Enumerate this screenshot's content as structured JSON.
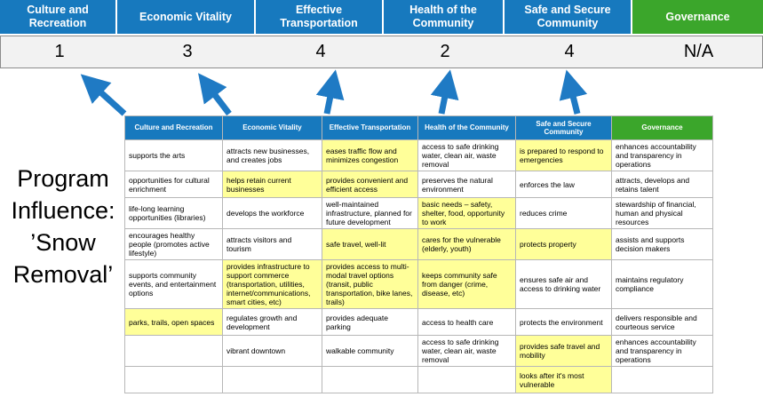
{
  "program_label": {
    "lines": [
      "Program",
      "Influence:",
      "’Snow",
      "Removal’"
    ]
  },
  "top_band": {
    "blue": "#1779BE",
    "green": "#3BA62B",
    "highlight_yellow": "#FFFF99",
    "columns": [
      {
        "label": "Culture and Recreation",
        "score": "1",
        "color": "blue"
      },
      {
        "label": "Economic Vitality",
        "score": "3",
        "color": "blue"
      },
      {
        "label": "Effective Transportation",
        "score": "4",
        "color": "blue"
      },
      {
        "label": "Health of the Community",
        "score": "2",
        "color": "blue"
      },
      {
        "label": "Safe and Secure Community",
        "score": "4",
        "color": "blue"
      },
      {
        "label": "Governance",
        "score": "N/A",
        "color": "green"
      }
    ]
  },
  "matrix": {
    "headers": [
      "Culture and Recreation",
      "Economic Vitality",
      "Effective Transportation",
      "Health of the Community",
      "Safe and Secure Community",
      "Governance"
    ],
    "rows": [
      [
        {
          "text": "supports the arts",
          "hl": false
        },
        {
          "text": "attracts new businesses, and creates jobs",
          "hl": false
        },
        {
          "text": "eases traffic flow and minimizes congestion",
          "hl": true
        },
        {
          "text": "access to safe drinking water, clean air, waste removal",
          "hl": false
        },
        {
          "text": "is prepared to respond to emergencies",
          "hl": true
        },
        {
          "text": "enhances accountability and transparency in operations",
          "hl": false
        }
      ],
      [
        {
          "text": "opportunities for cultural enrichment",
          "hl": false
        },
        {
          "text": "helps retain current businesses",
          "hl": true
        },
        {
          "text": "provides convenient and efficient access",
          "hl": true
        },
        {
          "text": "preserves the natural environment",
          "hl": false
        },
        {
          "text": "enforces the law",
          "hl": false
        },
        {
          "text": "attracts, develops and retains talent",
          "hl": false
        }
      ],
      [
        {
          "text": "life-long learning opportunities (libraries)",
          "hl": false
        },
        {
          "text": "develops the workforce",
          "hl": false
        },
        {
          "text": "well-maintained infrastructure, planned for future development",
          "hl": false
        },
        {
          "text": "basic needs – safety, shelter, food, opportunity to work",
          "hl": true
        },
        {
          "text": "reduces crime",
          "hl": false
        },
        {
          "text": "stewardship of financial, human and physical resources",
          "hl": false
        }
      ],
      [
        {
          "text": "encourages healthy people (promotes active lifestyle)",
          "hl": false
        },
        {
          "text": "attracts visitors and tourism",
          "hl": false
        },
        {
          "text": "safe travel, well-lit",
          "hl": true
        },
        {
          "text": "cares for the vulnerable (elderly, youth)",
          "hl": true
        },
        {
          "text": "protects property",
          "hl": true
        },
        {
          "text": "assists and supports decision makers",
          "hl": false
        }
      ],
      [
        {
          "text": "supports community events, and entertainment options",
          "hl": false
        },
        {
          "text": "provides infrastructure to support commerce (transportation, utilities, internet/communications, smart cities, etc)",
          "hl": true
        },
        {
          "text": "provides access to multi-modal travel options (transit, public transportation, bike lanes, trails)",
          "hl": true
        },
        {
          "text": "keeps community safe from danger (crime, disease, etc)",
          "hl": true
        },
        {
          "text": "ensures safe air and access to drinking water",
          "hl": false
        },
        {
          "text": "maintains regulatory compliance",
          "hl": false
        }
      ],
      [
        {
          "text": "parks, trails, open spaces",
          "hl": true
        },
        {
          "text": "regulates growth and development",
          "hl": false
        },
        {
          "text": "provides adequate parking",
          "hl": false
        },
        {
          "text": "access to health care",
          "hl": false
        },
        {
          "text": "protects the environment",
          "hl": false
        },
        {
          "text": "delivers responsible and courteous service",
          "hl": false
        }
      ],
      [
        {
          "text": "",
          "hl": false
        },
        {
          "text": "vibrant downtown",
          "hl": false
        },
        {
          "text": "walkable community",
          "hl": false
        },
        {
          "text": "access to safe drinking water, clean air, waste removal",
          "hl": false
        },
        {
          "text": "provides safe travel and mobility",
          "hl": true
        },
        {
          "text": "enhances accountability and transparency in operations",
          "hl": false
        }
      ],
      [
        {
          "text": "",
          "hl": false
        },
        {
          "text": "",
          "hl": false
        },
        {
          "text": "",
          "hl": false
        },
        {
          "text": "",
          "hl": false
        },
        {
          "text": "looks after it's most vulnerable",
          "hl": true
        },
        {
          "text": "",
          "hl": false
        }
      ]
    ]
  }
}
